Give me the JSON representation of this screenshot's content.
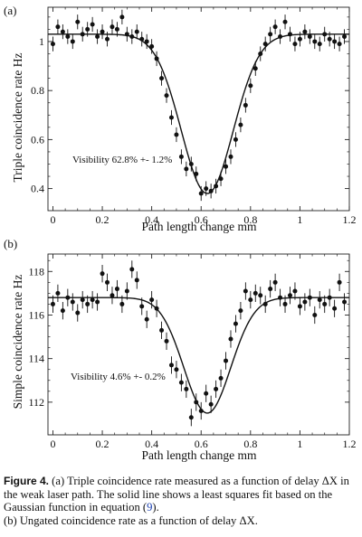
{
  "chart_data": [
    {
      "type": "scatter",
      "panel_label": "(a)",
      "xlabel": "Path length change  mm",
      "ylabel": "Triple coincidence rate  Hz",
      "xlim": [
        -0.02,
        1.2
      ],
      "ylim": [
        0.31,
        1.14
      ],
      "xticks": [
        0,
        0.2,
        0.4,
        0.6,
        0.8,
        1.0,
        1.2
      ],
      "xtick_labels": [
        "0",
        "0.2",
        "0.4",
        "0.6",
        "0.8",
        "1",
        "1.2"
      ],
      "yticks": [
        0.4,
        0.6,
        0.8,
        1.0
      ],
      "ytick_labels": [
        "0.4",
        "0.6",
        "0.8",
        "1"
      ],
      "annotation": "Visibility 62.8% +- 1.2%",
      "fit": {
        "baseline": 1.03,
        "amplitude": 0.65,
        "center": 0.625,
        "sigma": 0.105
      },
      "series": [
        {
          "x": [
            0.0,
            0.02,
            0.04,
            0.06,
            0.08,
            0.1,
            0.12,
            0.14,
            0.16,
            0.18,
            0.2,
            0.22,
            0.24,
            0.26,
            0.28,
            0.3,
            0.32,
            0.34,
            0.36,
            0.38,
            0.4,
            0.42,
            0.44,
            0.46,
            0.48,
            0.5,
            0.52,
            0.54,
            0.56,
            0.58,
            0.6,
            0.62,
            0.64,
            0.66,
            0.68,
            0.7,
            0.72,
            0.74,
            0.76,
            0.78,
            0.8,
            0.82,
            0.84,
            0.86,
            0.88,
            0.9,
            0.92,
            0.94,
            0.96,
            0.98,
            1.0,
            1.02,
            1.04,
            1.06,
            1.08,
            1.1,
            1.12,
            1.14,
            1.16,
            1.18
          ],
          "y": [
            0.99,
            1.06,
            1.04,
            1.02,
            1.0,
            1.08,
            1.03,
            1.05,
            1.07,
            1.02,
            1.04,
            1.01,
            1.06,
            1.05,
            1.1,
            1.03,
            1.02,
            1.04,
            1.01,
            1.0,
            0.98,
            0.93,
            0.85,
            0.78,
            0.69,
            0.62,
            0.53,
            0.48,
            0.5,
            0.46,
            0.38,
            0.4,
            0.39,
            0.41,
            0.44,
            0.49,
            0.53,
            0.6,
            0.66,
            0.74,
            0.82,
            0.89,
            0.95,
            0.99,
            1.03,
            1.06,
            1.02,
            1.08,
            1.03,
            0.99,
            1.01,
            1.04,
            1.02,
            1.0,
            0.99,
            1.03,
            1.01,
            1.0,
            0.99,
            1.02
          ],
          "err": [
            0.03,
            0.03,
            0.03,
            0.03,
            0.03,
            0.03,
            0.03,
            0.03,
            0.03,
            0.03,
            0.03,
            0.03,
            0.03,
            0.03,
            0.03,
            0.03,
            0.03,
            0.03,
            0.03,
            0.03,
            0.03,
            0.03,
            0.03,
            0.03,
            0.03,
            0.03,
            0.03,
            0.03,
            0.03,
            0.03,
            0.03,
            0.03,
            0.03,
            0.03,
            0.03,
            0.03,
            0.03,
            0.03,
            0.03,
            0.03,
            0.03,
            0.03,
            0.03,
            0.03,
            0.03,
            0.03,
            0.03,
            0.03,
            0.03,
            0.03,
            0.03,
            0.03,
            0.03,
            0.03,
            0.03,
            0.03,
            0.03,
            0.03,
            0.03,
            0.03
          ]
        }
      ]
    },
    {
      "type": "scatter",
      "panel_label": "(b)",
      "xlabel": "Path length change  mm",
      "ylabel": "Simple coincidence rate  Hz",
      "xlim": [
        -0.02,
        1.2
      ],
      "ylim": [
        110.5,
        118.8
      ],
      "xticks": [
        0,
        0.2,
        0.4,
        0.6,
        0.8,
        1.0,
        1.2
      ],
      "xtick_labels": [
        "0",
        "0.2",
        "0.4",
        "0.6",
        "0.8",
        "1",
        "1.2"
      ],
      "yticks": [
        112,
        114,
        116,
        118
      ],
      "ytick_labels": [
        "112",
        "114",
        "116",
        "118"
      ],
      "annotation": "Visibility 4.6% +- 0.2%",
      "fit": {
        "baseline": 116.8,
        "amplitude": 5.3,
        "center": 0.625,
        "sigma": 0.095
      },
      "series": [
        {
          "x": [
            0.0,
            0.02,
            0.04,
            0.06,
            0.08,
            0.1,
            0.12,
            0.14,
            0.16,
            0.18,
            0.2,
            0.22,
            0.24,
            0.26,
            0.28,
            0.3,
            0.32,
            0.34,
            0.36,
            0.38,
            0.4,
            0.42,
            0.44,
            0.46,
            0.48,
            0.5,
            0.52,
            0.54,
            0.56,
            0.58,
            0.6,
            0.62,
            0.64,
            0.66,
            0.68,
            0.7,
            0.72,
            0.74,
            0.76,
            0.78,
            0.8,
            0.82,
            0.84,
            0.86,
            0.88,
            0.9,
            0.92,
            0.94,
            0.96,
            0.98,
            1.0,
            1.02,
            1.04,
            1.06,
            1.08,
            1.1,
            1.12,
            1.14,
            1.16,
            1.18
          ],
          "y": [
            116.5,
            117.0,
            116.2,
            116.8,
            116.6,
            116.1,
            116.7,
            116.5,
            116.7,
            116.6,
            117.9,
            117.5,
            116.9,
            117.2,
            116.5,
            117.1,
            118.1,
            117.6,
            116.4,
            115.8,
            116.7,
            116.3,
            115.3,
            114.8,
            113.7,
            113.5,
            112.9,
            112.6,
            111.3,
            112.0,
            111.6,
            112.4,
            111.9,
            112.6,
            113.1,
            113.9,
            114.9,
            115.6,
            116.2,
            117.1,
            116.7,
            117.0,
            116.9,
            116.5,
            117.2,
            117.5,
            116.8,
            116.5,
            116.9,
            117.1,
            116.4,
            116.6,
            116.8,
            116.0,
            116.7,
            116.5,
            116.8,
            116.3,
            117.5,
            116.6
          ],
          "err": [
            0.4,
            0.4,
            0.4,
            0.4,
            0.4,
            0.4,
            0.4,
            0.4,
            0.4,
            0.4,
            0.4,
            0.4,
            0.4,
            0.4,
            0.4,
            0.4,
            0.4,
            0.4,
            0.4,
            0.4,
            0.4,
            0.4,
            0.4,
            0.4,
            0.4,
            0.4,
            0.4,
            0.4,
            0.4,
            0.4,
            0.4,
            0.4,
            0.4,
            0.4,
            0.4,
            0.4,
            0.4,
            0.4,
            0.4,
            0.4,
            0.4,
            0.4,
            0.4,
            0.4,
            0.4,
            0.4,
            0.4,
            0.4,
            0.4,
            0.4,
            0.4,
            0.4,
            0.4,
            0.4,
            0.4,
            0.4,
            0.4,
            0.4,
            0.4,
            0.4
          ]
        }
      ]
    }
  ],
  "caption": {
    "label": "Figure 4.",
    "text_1": "(a) Triple coincidence rate measured as a function of delay ΔX in the weak laser path. The solid line shows a least squares fit based on the Gaussian function in equation (",
    "ref": "9",
    "text_2": ").",
    "text_3": "(b) Ungated coincidence rate as a function of delay ΔX."
  }
}
